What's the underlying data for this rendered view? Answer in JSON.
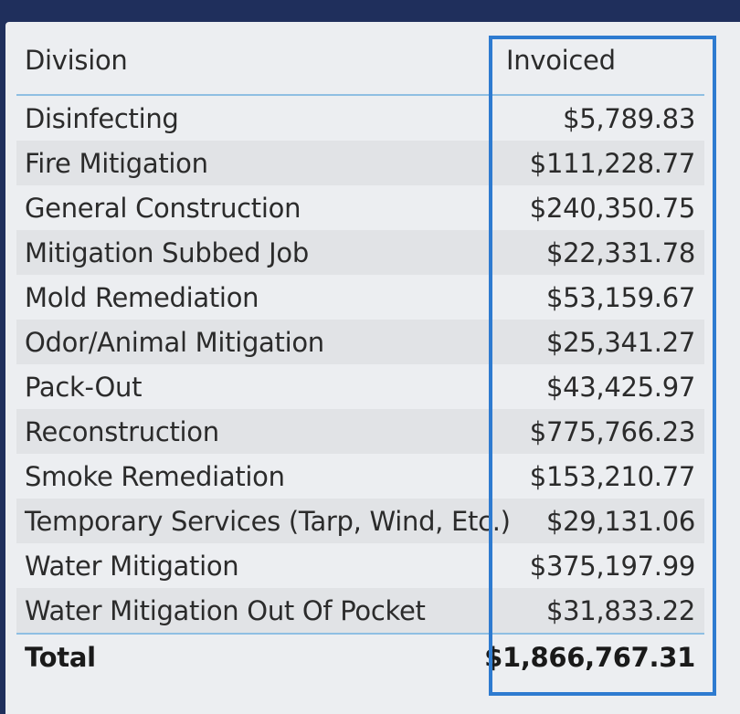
{
  "table": {
    "headers": {
      "division": "Division",
      "invoiced": "Invoiced"
    },
    "rows": [
      {
        "division": "Disinfecting",
        "invoiced": "$5,789.83"
      },
      {
        "division": "Fire Mitigation",
        "invoiced": "$111,228.77"
      },
      {
        "division": "General Construction",
        "invoiced": "$240,350.75"
      },
      {
        "division": "Mitigation Subbed Job",
        "invoiced": "$22,331.78"
      },
      {
        "division": "Mold Remediation",
        "invoiced": "$53,159.67"
      },
      {
        "division": "Odor/Animal Mitigation",
        "invoiced": "$25,341.27"
      },
      {
        "division": "Pack-Out",
        "invoiced": "$43,425.97"
      },
      {
        "division": "Reconstruction",
        "invoiced": "$775,766.23"
      },
      {
        "division": "Smoke Remediation",
        "invoiced": "$153,210.77"
      },
      {
        "division": "Temporary Services (Tarp, Wind, Etc.)",
        "invoiced": "$29,131.06"
      },
      {
        "division": "Water Mitigation",
        "invoiced": "$375,197.99"
      },
      {
        "division": "Water Mitigation Out Of Pocket",
        "invoiced": "$31,833.22"
      }
    ],
    "total": {
      "label": "Total",
      "invoiced": "$1,866,767.31"
    }
  },
  "colors": {
    "frame": "#1f2f5c",
    "panel": "#eceef1",
    "row_alt": "#e1e3e6",
    "header_rule": "#8fbfe3",
    "highlight_box": "#2e7bd0"
  }
}
